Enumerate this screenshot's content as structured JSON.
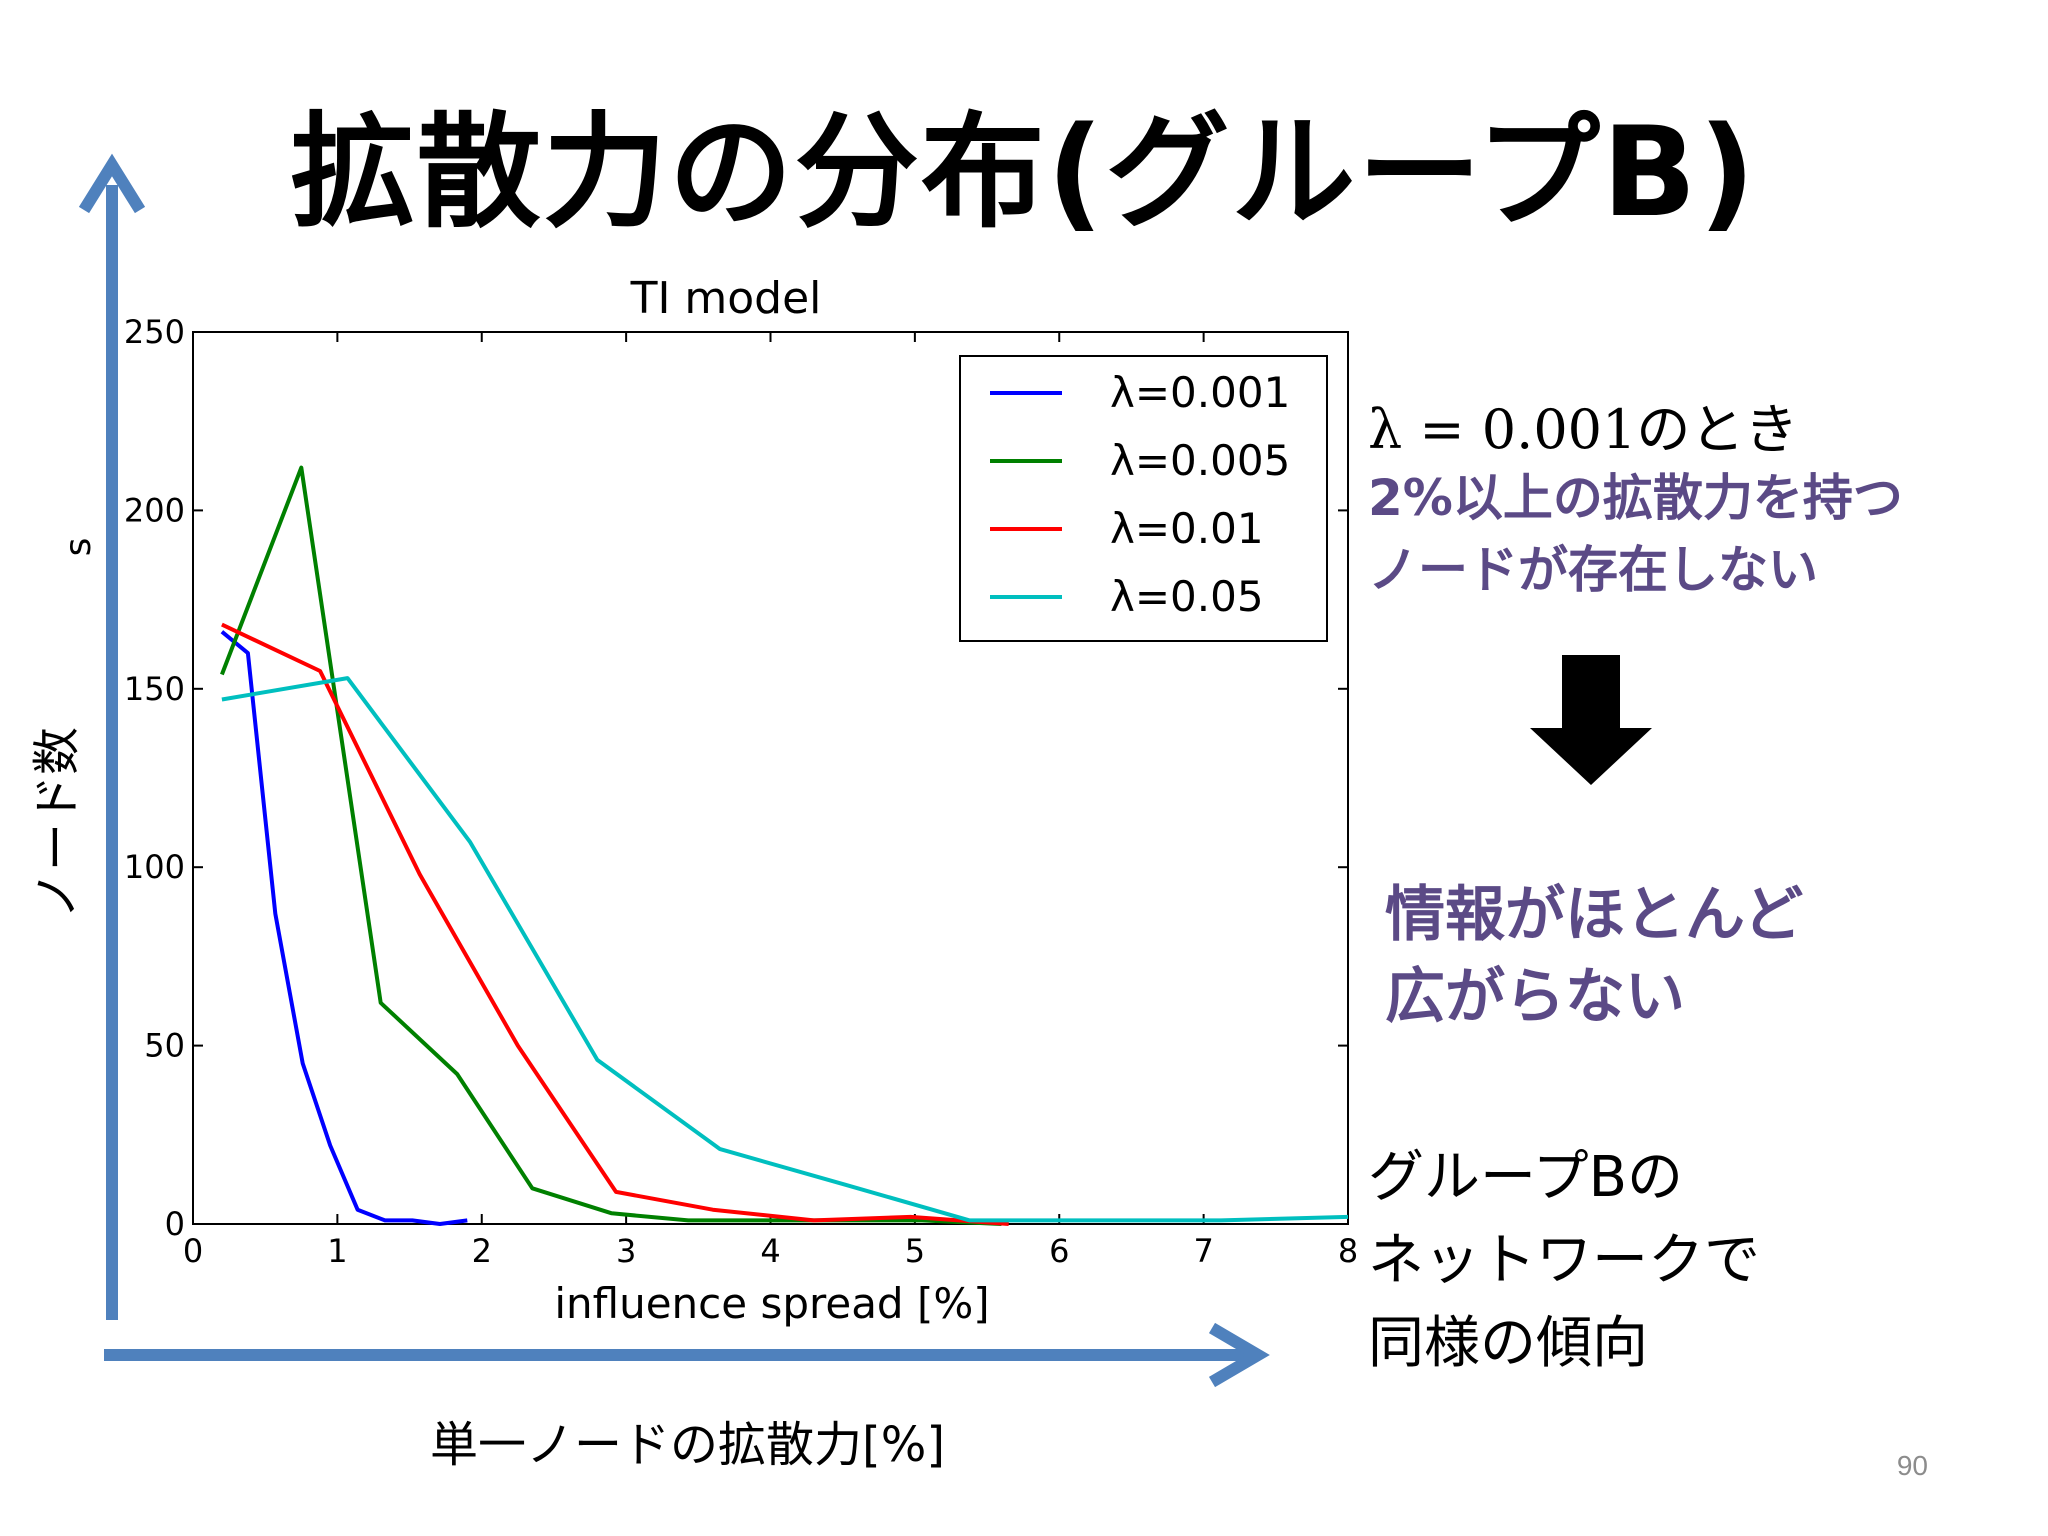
{
  "slide": {
    "title": "拡散力の分布(グループB)",
    "page_number": "90",
    "x_arrow_label": "単一ノードの拡散力[%]",
    "y_arrow_label": "ノード数"
  },
  "notes": {
    "lambda_case": "λ = 0.001のとき",
    "finding_line1": "2%以上の拡散力を持つ",
    "finding_line2": "ノードが存在しない",
    "conclusion_line1": "情報がほとんど",
    "conclusion_line2": "広がらない",
    "group_line1": "グループBの",
    "group_line2": "ネットワークで",
    "group_line3": "同様の傾向"
  },
  "colors": {
    "arrow": "#4f81bd",
    "accent_text": "#5b4a86",
    "down_arrow": "#000000"
  },
  "chart_data": {
    "type": "line",
    "title": "TI model",
    "xlabel": "influence spread [%]",
    "ylabel": "s",
    "xlim": [
      0,
      8
    ],
    "ylim": [
      0,
      250
    ],
    "xticks": [
      0,
      1,
      2,
      3,
      4,
      5,
      6,
      7,
      8
    ],
    "yticks": [
      0,
      50,
      100,
      150,
      200,
      250
    ],
    "legend_position": "top-right",
    "grid": false,
    "series": [
      {
        "name": "λ=0.001",
        "color": "#0000ff",
        "points": [
          [
            0.2,
            166
          ],
          [
            0.38,
            160
          ],
          [
            0.57,
            87
          ],
          [
            0.76,
            45
          ],
          [
            0.95,
            22
          ],
          [
            1.14,
            4
          ],
          [
            1.33,
            1
          ],
          [
            1.52,
            1
          ],
          [
            1.71,
            0
          ],
          [
            1.9,
            1
          ]
        ]
      },
      {
        "name": "λ=0.005",
        "color": "#008000",
        "points": [
          [
            0.2,
            154
          ],
          [
            0.75,
            212
          ],
          [
            1.3,
            62
          ],
          [
            1.83,
            42
          ],
          [
            2.35,
            10
          ],
          [
            2.9,
            3
          ],
          [
            3.43,
            1
          ],
          [
            3.97,
            1
          ],
          [
            4.5,
            1
          ],
          [
            5.05,
            1
          ],
          [
            5.6,
            0
          ]
        ]
      },
      {
        "name": "λ=0.01",
        "color": "#ff0000",
        "points": [
          [
            0.2,
            168
          ],
          [
            0.88,
            155
          ],
          [
            1.57,
            98
          ],
          [
            2.25,
            50
          ],
          [
            2.93,
            9
          ],
          [
            3.6,
            4
          ],
          [
            4.3,
            1
          ],
          [
            4.97,
            2
          ],
          [
            5.65,
            0
          ]
        ]
      },
      {
        "name": "λ=0.05",
        "color": "#00bfbf",
        "points": [
          [
            0.2,
            147
          ],
          [
            1.07,
            153
          ],
          [
            1.92,
            107
          ],
          [
            2.8,
            46
          ],
          [
            3.65,
            21
          ],
          [
            4.52,
            11
          ],
          [
            5.38,
            1
          ],
          [
            6.25,
            1
          ],
          [
            7.12,
            1
          ],
          [
            8.0,
            2
          ]
        ]
      }
    ]
  }
}
